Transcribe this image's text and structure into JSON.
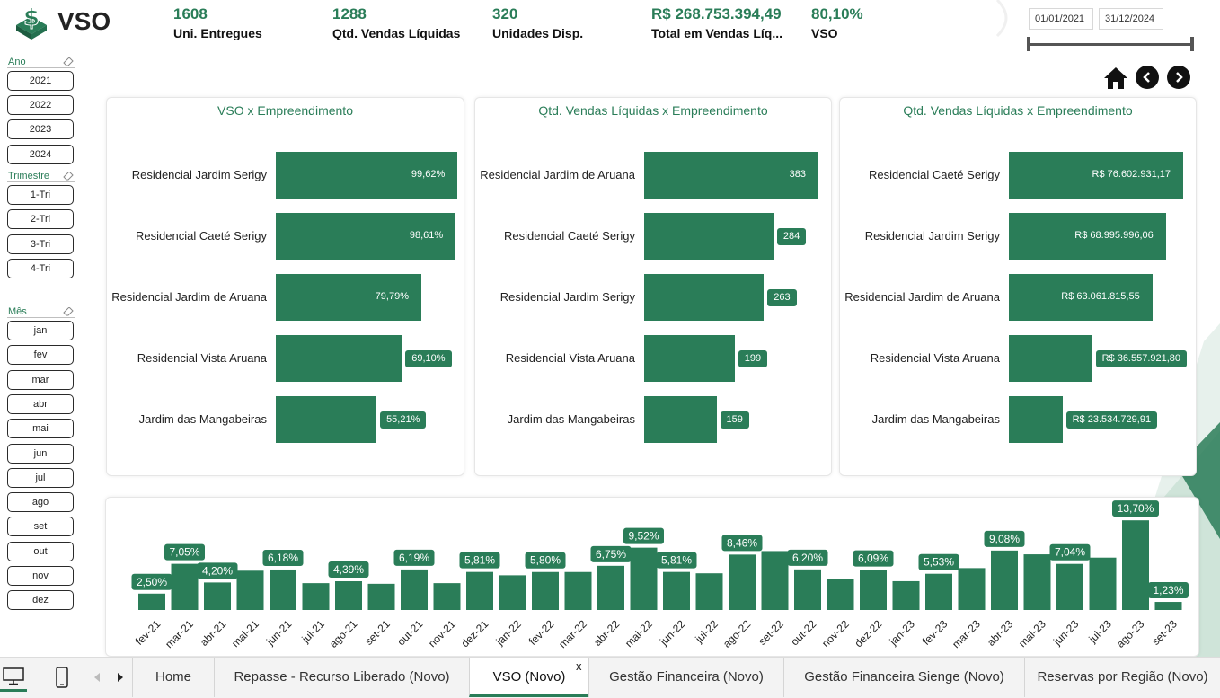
{
  "logo": {
    "text": "VSO",
    "icon": "dollar-box-icon"
  },
  "kpis": [
    {
      "value": "1608",
      "label": "Uni. Entregues"
    },
    {
      "value": "1288",
      "label": "Qtd. Vendas Líquidas"
    },
    {
      "value": "320",
      "label": "Unidades Disp."
    },
    {
      "value": "R$ 268.753.394,49",
      "label": "Total em Vendas Líq..."
    },
    {
      "value": "80,10%",
      "label": "VSO"
    }
  ],
  "date_range": {
    "start": "01/01/2021",
    "end": "31/12/2024"
  },
  "nav": {
    "home_icon": "home-icon",
    "prev_icon": "chevron-left-icon",
    "next_icon": "chevron-right-icon"
  },
  "slicers": {
    "ano": {
      "title": "Ano",
      "items": [
        "2021",
        "2022",
        "2023",
        "2024"
      ]
    },
    "trimestre": {
      "title": "Trimestre",
      "items": [
        "1-Tri",
        "2-Tri",
        "3-Tri",
        "4-Tri"
      ]
    },
    "mes": {
      "title": "Mês",
      "items": [
        "jan",
        "fev",
        "mar",
        "abr",
        "mai",
        "jun",
        "jul",
        "ago",
        "set",
        "out",
        "nov",
        "dez"
      ]
    }
  },
  "colors": {
    "accent": "#2a7d58",
    "text": "#222222"
  },
  "chart_data": [
    {
      "type": "bar",
      "orientation": "horizontal",
      "title": "VSO x Empreendimento",
      "categories": [
        "Residencial Jardim Serigy",
        "Residencial Caeté Serigy",
        "Residencial Jardim de Aruana",
        "Residencial Vista Aruana",
        "Jardim das Mangabeiras"
      ],
      "values": [
        99.62,
        98.61,
        79.79,
        69.1,
        55.21
      ],
      "labels": [
        "99,62%",
        "98,61%",
        "79,79%",
        "69,10%",
        "55,21%"
      ],
      "xlim": [
        0,
        100
      ]
    },
    {
      "type": "bar",
      "orientation": "horizontal",
      "title": "Qtd. Vendas Líquidas x Empreendimento",
      "categories": [
        "Residencial Jardim de Aruana",
        "Residencial Caeté Serigy",
        "Residencial Jardim Serigy",
        "Residencial Vista Aruana",
        "Jardim das Mangabeiras"
      ],
      "values": [
        383,
        284,
        263,
        199,
        159
      ],
      "labels": [
        "383",
        "284",
        "263",
        "199",
        "159"
      ],
      "xlim": [
        0,
        383
      ]
    },
    {
      "type": "bar",
      "orientation": "horizontal",
      "title": "Qtd. Vendas Líquidas x Empreendimento",
      "categories": [
        "Residencial Caeté Serigy",
        "Residencial Jardim Serigy",
        "Residencial Jardim de Aruana",
        "Residencial Vista Aruana",
        "Jardim das Mangabeiras"
      ],
      "values": [
        76602931.17,
        68995996.06,
        63061815.55,
        36557921.8,
        23534729.91
      ],
      "labels": [
        "R$ 76.602.931,17",
        "R$ 68.995.996,06",
        "R$ 63.061.815,55",
        "R$ 36.557.921,80",
        "R$ 23.534.729,91"
      ],
      "xlim": [
        0,
        76602931.17
      ]
    },
    {
      "type": "bar",
      "orientation": "vertical",
      "title": "",
      "categories": [
        "fev-21",
        "mar-21",
        "abr-21",
        "mai-21",
        "jun-21",
        "jul-21",
        "ago-21",
        "set-21",
        "out-21",
        "nov-21",
        "dez-21",
        "jan-22",
        "fev-22",
        "mar-22",
        "abr-22",
        "mai-22",
        "jun-22",
        "jul-22",
        "ago-22",
        "set-22",
        "out-22",
        "nov-22",
        "dez-22",
        "jan-23",
        "fev-23",
        "mar-23",
        "abr-23",
        "mai-23",
        "jun-23",
        "jul-23",
        "ago-23",
        "set-23"
      ],
      "values": [
        2.5,
        7.05,
        4.2,
        6.0,
        6.18,
        4.1,
        4.39,
        4.0,
        6.19,
        4.1,
        5.81,
        5.3,
        5.8,
        5.8,
        6.75,
        9.52,
        5.81,
        5.6,
        8.46,
        9.0,
        6.2,
        4.8,
        6.09,
        4.4,
        5.53,
        6.4,
        9.08,
        8.5,
        7.04,
        8.0,
        13.7,
        1.23
      ],
      "data_labels": [
        "2,50%",
        "7,05%",
        "4,20%",
        "",
        "6,18%",
        "",
        "4,39%",
        "",
        "6,19%",
        "",
        "5,81%",
        "",
        "5,80%",
        "",
        "6,75%",
        "9,52%",
        "5,81%",
        "",
        "8,46%",
        "",
        "6,20%",
        "",
        "6,09%",
        "",
        "5,53%",
        "",
        "9,08%",
        "",
        "7,04%",
        "",
        "13,70%",
        "1,23%"
      ],
      "ylim": [
        0,
        14
      ]
    }
  ],
  "tabbar": {
    "icons": [
      "desktop-icon",
      "phone-icon",
      "scroll-left-icon",
      "scroll-right-icon"
    ],
    "tabs": [
      "Home",
      "Repasse - Recurso Liberado (Novo)",
      "VSO (Novo)",
      "Gestão Financeira (Novo)",
      "Gestão Financeira Sienge (Novo)",
      "Reservas por Região (Novo)"
    ],
    "active_index": 2,
    "close_label": "x"
  }
}
